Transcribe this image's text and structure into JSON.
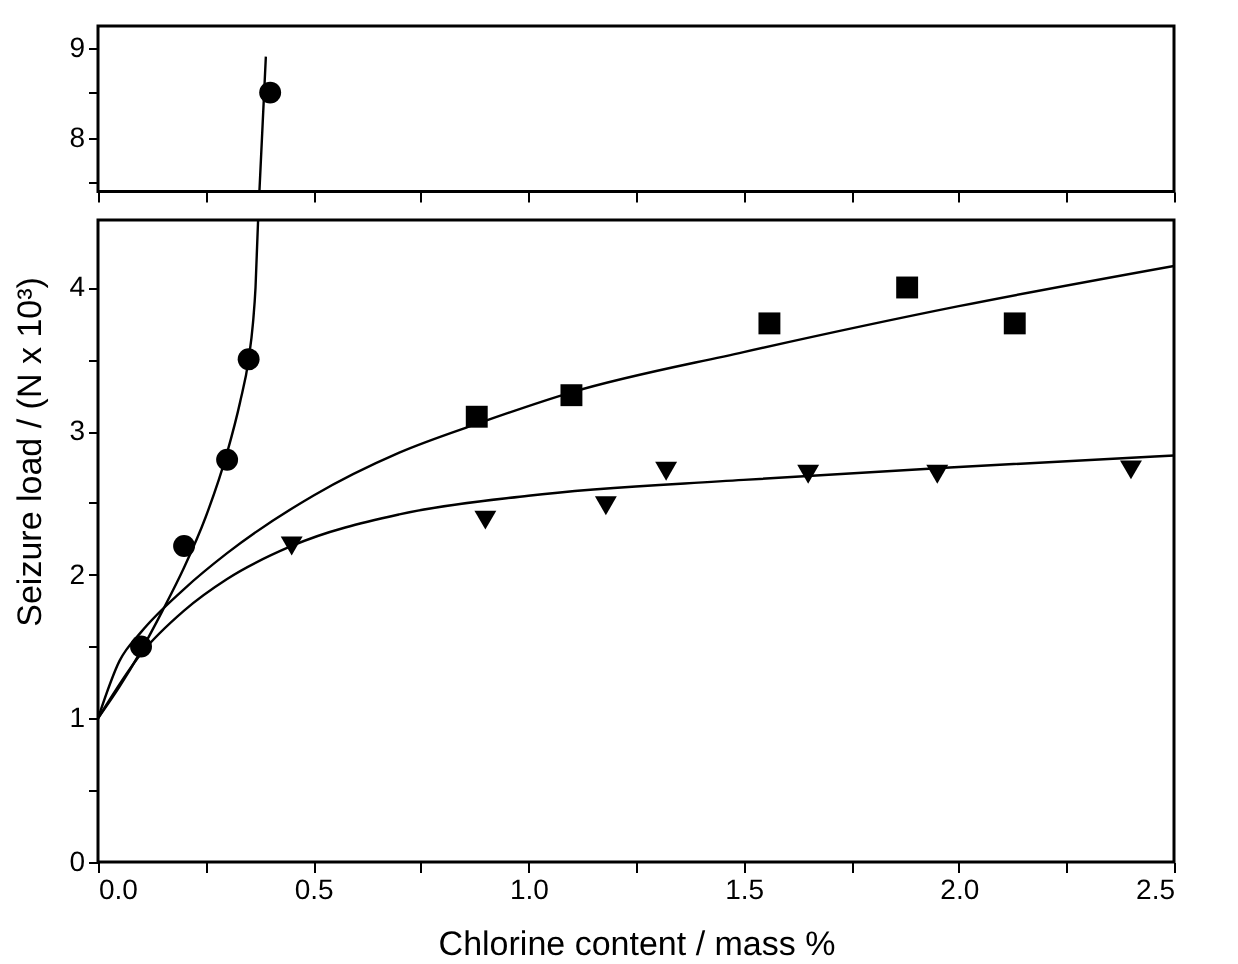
{
  "chart_data": [
    {
      "type": "scatter",
      "ylim": [
        7.4,
        9.24
      ],
      "yticks": [
        {
          "value": 7.5,
          "label": null
        },
        8,
        {
          "value": 8.5,
          "label": null
        },
        9
      ],
      "xlim": [
        0,
        2.5
      ],
      "xticks": [
        {
          "value": 0,
          "label": null
        },
        {
          "value": 0.25,
          "label": null
        },
        {
          "value": 0.5,
          "label": null
        },
        {
          "value": 0.75,
          "label": null
        },
        {
          "value": 1,
          "label": null
        },
        {
          "value": 1.25,
          "label": null
        },
        {
          "value": 1.5,
          "label": null
        },
        {
          "value": 1.75,
          "label": null
        },
        {
          "value": 2,
          "label": null
        },
        {
          "value": 2.25,
          "label": null
        },
        {
          "value": 2.5,
          "label": null
        }
      ],
      "tick_labels": "y",
      "grid": false,
      "series": [
        {
          "marker": "circle",
          "color": "#000000",
          "x": [
            0.4
          ],
          "values": [
            8.5
          ]
        },
        {
          "type": "line",
          "marker": "none",
          "line_style": "solid",
          "color": "#000000",
          "x": [
            0.375,
            0.38,
            0.385,
            0.39
          ],
          "values": [
            7.4,
            7.9,
            8.4,
            8.9
          ]
        }
      ]
    },
    {
      "type": "scatter",
      "xlabel": "Chlorine content / mass %",
      "ylabel": "Seizure load  /  (N x 10³)",
      "ylim": [
        0,
        4.47
      ],
      "yticks": [
        0,
        {
          "value": 0.5,
          "label": null
        },
        1,
        {
          "value": 1.5,
          "label": null
        },
        2,
        {
          "value": 2.5,
          "label": null
        },
        3,
        {
          "value": 3.5,
          "label": null
        },
        4
      ],
      "xlim": [
        0,
        2.5
      ],
      "xticks": [
        {
          "value": 0,
          "label": "0.0"
        },
        {
          "value": 0.25,
          "label": null
        },
        0.5,
        {
          "value": 0.75,
          "label": null
        },
        {
          "value": 1,
          "label": "1.0"
        },
        {
          "value": 1.25,
          "label": null
        },
        1.5,
        {
          "value": 1.75,
          "label": null
        },
        {
          "value": 2,
          "label": "2.0"
        },
        {
          "value": 2.25,
          "label": null
        },
        2.5
      ],
      "grid": false,
      "series": [
        {
          "type": "line",
          "marker": "none",
          "line_style": "solid",
          "color": "#000000",
          "x": [
            0,
            0.05,
            0.1,
            0.15,
            0.2,
            0.25,
            0.3,
            0.33,
            0.35,
            0.36,
            0.366,
            0.372
          ],
          "values": [
            1,
            1.22,
            1.47,
            1.75,
            2.05,
            2.4,
            2.85,
            3.2,
            3.5,
            3.75,
            4.0,
            4.47
          ]
        },
        {
          "type": "line",
          "marker": "none",
          "line_style": "solid",
          "color": "#000000",
          "x": [
            0,
            0.05,
            0.1,
            0.2,
            0.3,
            0.5,
            0.7,
            0.88,
            1.1,
            1.5,
            2.0,
            2.5
          ],
          "values": [
            1,
            1.4,
            1.6,
            1.9,
            2.15,
            2.55,
            2.85,
            3.05,
            3.27,
            3.55,
            3.87,
            4.15
          ]
        },
        {
          "type": "line",
          "marker": "none",
          "line_style": "solid",
          "color": "#000000",
          "x": [
            0,
            0.1,
            0.2,
            0.3,
            0.45,
            0.7,
            1.0,
            1.5,
            2.0,
            2.5
          ],
          "values": [
            1,
            1.45,
            1.75,
            1.97,
            2.2,
            2.42,
            2.55,
            2.66,
            2.75,
            2.83
          ]
        },
        {
          "marker": "square",
          "color": "#000000",
          "x": [
            0.88,
            1.1,
            1.56,
            1.88,
            2.13
          ],
          "values": [
            3.1,
            3.25,
            3.75,
            4.0,
            3.75
          ]
        },
        {
          "marker": "triangle",
          "color": "#000000",
          "x": [
            0.45,
            0.9,
            1.18,
            1.32,
            1.65,
            1.95,
            2.4
          ],
          "values": [
            2.2,
            2.38,
            2.48,
            2.72,
            2.7,
            2.7,
            2.73
          ]
        },
        {
          "marker": "circle",
          "color": "#000000",
          "x": [
            0.1,
            0.2,
            0.3,
            0.35
          ],
          "values": [
            1.5,
            2.2,
            2.8,
            3.5
          ]
        }
      ]
    }
  ]
}
